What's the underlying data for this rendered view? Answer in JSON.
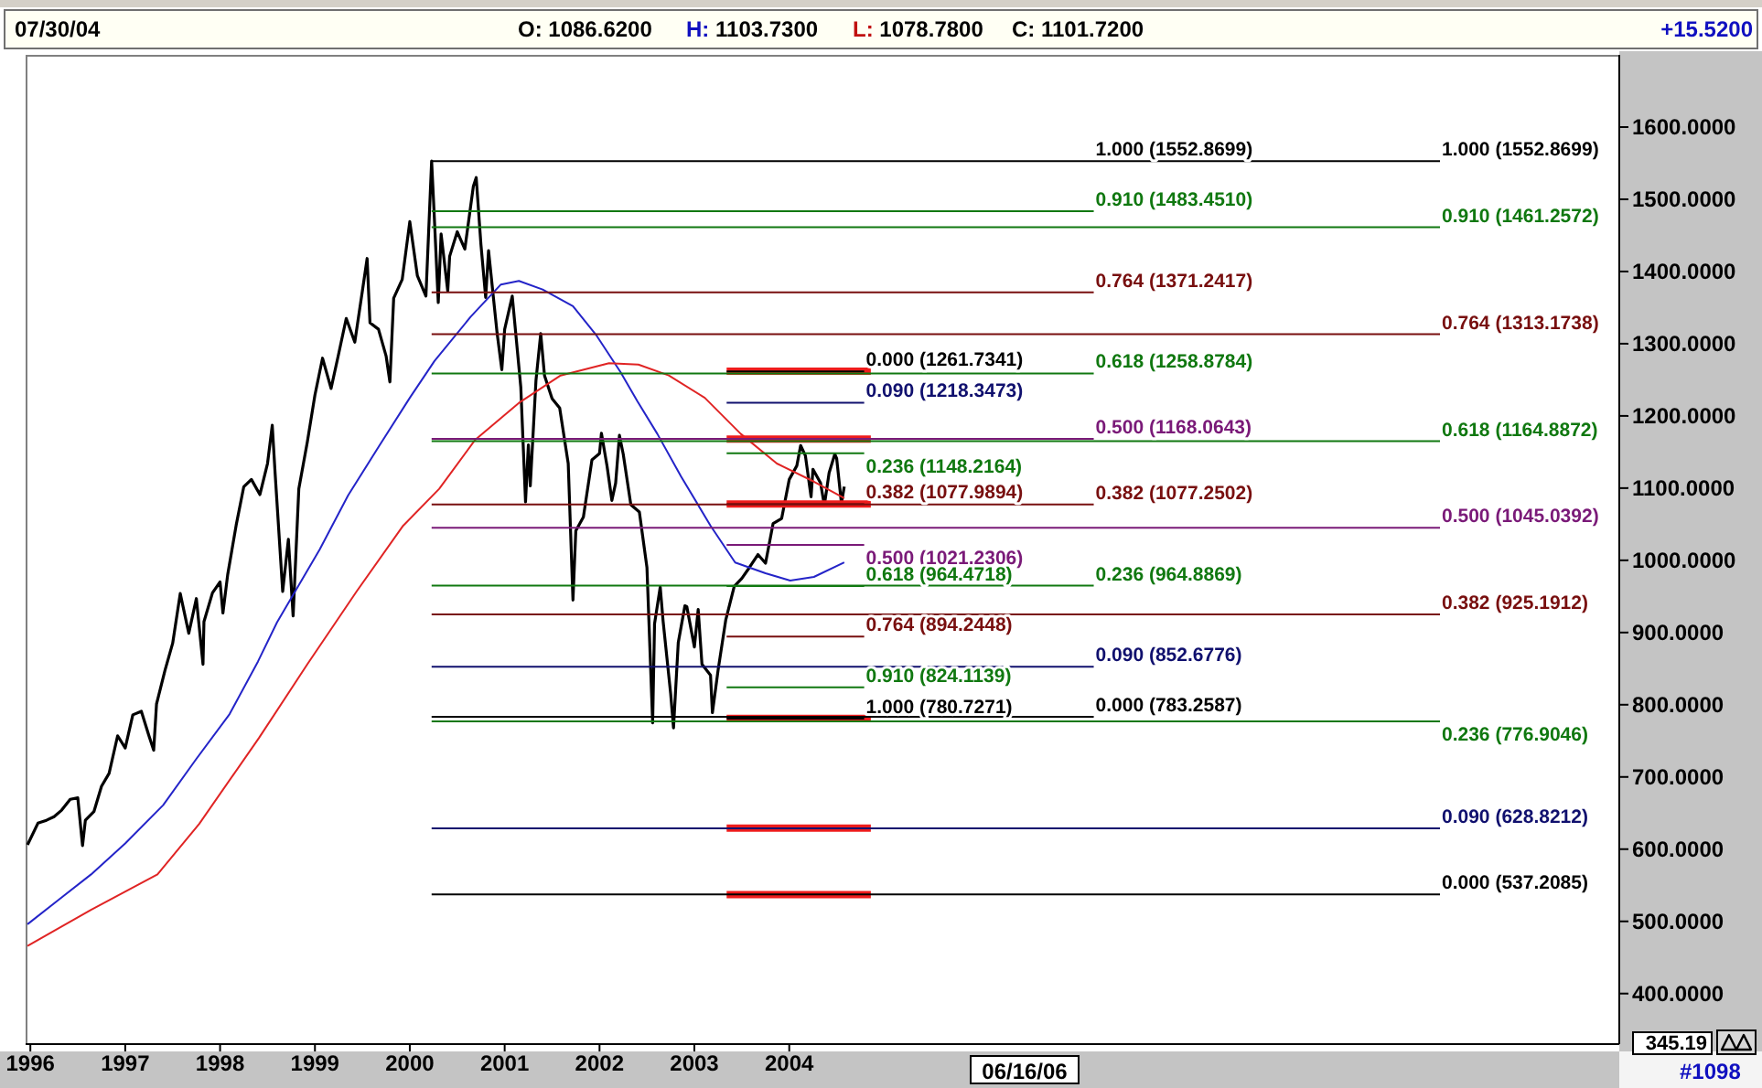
{
  "chart_data": {
    "type": "line",
    "annotations": [
      "07/30/04",
      "O: 1086.6200",
      "H: 1103.7300",
      "L: 1078.7800",
      "C: 1101.7200",
      "+15.5200",
      "06/16/06",
      "#1098",
      "345.19",
      {
        "text": "1.000 (1552.8699)",
        "x": 2007.21,
        "y": 1552.8699
      }
    ],
    "xlim": [
      1995.95,
      2012.75
    ],
    "xticks": [
      1996,
      1997,
      1998,
      1999,
      2000,
      2001,
      2002,
      2003,
      2004
    ],
    "ylim": [
      330,
      1700
    ],
    "yticks": [
      {
        "value": 400,
        "label": "400.0000"
      },
      {
        "value": 500,
        "label": "500.0000"
      },
      {
        "value": 600,
        "label": "600.0000"
      },
      {
        "value": 700,
        "label": "700.0000"
      },
      {
        "value": 800,
        "label": "800.0000"
      },
      {
        "value": 900,
        "label": "900.0000"
      },
      {
        "value": 1000,
        "label": "1000.0000"
      },
      {
        "value": 1100,
        "label": "1100.0000"
      },
      {
        "value": 1200,
        "label": "1200.0000"
      },
      {
        "value": 1300,
        "label": "1300.0000"
      },
      {
        "value": 1400,
        "label": "1400.0000"
      },
      {
        "value": 1500,
        "label": "1500.0000"
      },
      {
        "value": 1600,
        "label": "1600.0000"
      }
    ],
    "marker": "none",
    "line_style": "solid",
    "series": [
      {
        "color": "#000000",
        "x": [
          1995.97,
          1996.08,
          1996.17,
          1996.25,
          1996.33,
          1996.42,
          1996.5,
          1996.55,
          1996.58,
          1996.67,
          1996.75,
          1996.83,
          1996.92,
          1997,
          1997.08,
          1997.17,
          1997.25,
          1997.3,
          1997.33,
          1997.42,
          1997.5,
          1997.58,
          1997.67,
          1997.75,
          1997.82,
          1997.83,
          1997.92,
          1998,
          1998.03,
          1998.08,
          1998.17,
          1998.25,
          1998.33,
          1998.42,
          1998.5,
          1998.55,
          1998.58,
          1998.66,
          1998.72,
          1998.77,
          1998.83,
          1998.92,
          1999,
          1999.08,
          1999.17,
          1999.25,
          1999.33,
          1999.42,
          1999.5,
          1999.55,
          1999.58,
          1999.67,
          1999.75,
          1999.79,
          1999.83,
          1999.92,
          2000,
          2000.08,
          2000.17,
          2000.23,
          2000.25,
          2000.3,
          2000.33,
          2000.4,
          2000.42,
          2000.5,
          2000.58,
          2000.67,
          2000.7,
          2000.75,
          2000.8,
          2000.83,
          2000.92,
          2000.97,
          2001,
          2001.08,
          2001.17,
          2001.22,
          2001.25,
          2001.27,
          2001.33,
          2001.38,
          2001.42,
          2001.5,
          2001.58,
          2001.67,
          2001.72,
          2001.75,
          2001.83,
          2001.92,
          2002,
          2002.02,
          2002.08,
          2002.13,
          2002.17,
          2002.21,
          2002.25,
          2002.33,
          2002.42,
          2002.5,
          2002.56,
          2002.58,
          2002.64,
          2002.67,
          2002.75,
          2002.78,
          2002.83,
          2002.9,
          2002.92,
          2003,
          2003.04,
          2003.08,
          2003.17,
          2003.19,
          2003.25,
          2003.33,
          2003.42,
          2003.5,
          2003.58,
          2003.67,
          2003.75,
          2003.83,
          2003.92,
          2004,
          2004.08,
          2004.12,
          2004.17,
          2004.23,
          2004.25,
          2004.33,
          2004.37,
          2004.42,
          2004.48,
          2004.5,
          2004.55,
          2004.58
        ],
        "values": [
          606,
          636,
          640,
          645,
          654,
          669,
          671,
          605,
          640,
          652,
          687,
          705,
          757,
          740,
          786,
          791,
          757,
          737,
          801,
          848,
          885,
          954,
          899,
          947,
          856,
          915,
          955,
          970,
          927,
          980,
          1049,
          1102,
          1112,
          1091,
          1134,
          1187,
          1121,
          957,
          1029,
          923,
          1099,
          1164,
          1229,
          1280,
          1238,
          1286,
          1335,
          1302,
          1373,
          1418,
          1329,
          1320,
          1283,
          1247,
          1363,
          1389,
          1469,
          1394,
          1366,
          1553,
          1499,
          1357,
          1452,
          1373,
          1421,
          1455,
          1431,
          1518,
          1530,
          1437,
          1364,
          1429,
          1315,
          1264,
          1320,
          1366,
          1240,
          1081,
          1160,
          1103,
          1249,
          1314,
          1256,
          1224,
          1211,
          1134,
          945,
          1041,
          1060,
          1139,
          1148,
          1176,
          1130,
          1083,
          1107,
          1173,
          1147,
          1077,
          1067,
          990,
          775,
          912,
          963,
          916,
          815,
          768,
          886,
          937,
          936,
          880,
          932,
          856,
          841,
          789,
          848,
          917,
          964,
          975,
          990,
          1008,
          996,
          1051,
          1058,
          1112,
          1131,
          1159,
          1145,
          1088,
          1126,
          1107,
          1076,
          1121,
          1147,
          1141,
          1079,
          1102
        ]
      },
      {
        "color": "#2424c8",
        "x": [
          1995.97,
          1996.3,
          1996.64,
          1997,
          1997.4,
          1997.75,
          1998.1,
          1998.4,
          1998.6,
          1999.05,
          1999.35,
          1999.68,
          2000,
          2000.26,
          2000.64,
          2000.96,
          2001.15,
          2001.4,
          2001.72,
          2001.97,
          2002.22,
          2002.4,
          2002.61,
          2002.86,
          2003.17,
          2003.43,
          2003.75,
          2004.01,
          2004.26,
          2004.58
        ],
        "values": [
          496,
          530,
          565,
          608,
          661,
          725,
          787,
          860,
          914,
          1015,
          1090,
          1159,
          1225,
          1276,
          1337,
          1382,
          1387,
          1375,
          1352,
          1311,
          1261,
          1220,
          1175,
          1116,
          1048,
          997,
          982,
          972,
          977,
          997
        ]
      },
      {
        "color": "#e02424",
        "x": [
          1995.97,
          1996.64,
          1997.34,
          1997.78,
          1998.41,
          1998.92,
          1999.44,
          1999.93,
          2000.31,
          2000.69,
          2001.15,
          2001.59,
          2002.1,
          2002.41,
          2002.73,
          2003.11,
          2003.49,
          2003.87,
          2004.26,
          2004.58
        ],
        "values": [
          466,
          516,
          565,
          635,
          754,
          856,
          957,
          1048,
          1099,
          1167,
          1218,
          1256,
          1273,
          1271,
          1256,
          1225,
          1175,
          1134,
          1109,
          1086
        ]
      },
      {
        "color": "#ee1c1c",
        "x": [
          2003.34,
          2004.86
        ],
        "values": [
          1262,
          1262
        ]
      },
      {
        "color": "#ee1c1c",
        "x": [
          2003.34,
          2004.86
        ],
        "values": [
          1168,
          1168
        ]
      },
      {
        "color": "#ee1c1c",
        "x": [
          2003.34,
          2004.86
        ],
        "values": [
          1078,
          1078
        ]
      },
      {
        "color": "#ee1c1c",
        "x": [
          2003.34,
          2004.86
        ],
        "values": [
          781,
          781
        ]
      },
      {
        "color": "#ee1c1c",
        "x": [
          2003.34,
          2004.86
        ],
        "values": [
          629,
          629
        ]
      },
      {
        "color": "#ee1c1c",
        "x": [
          2003.34,
          2004.86
        ],
        "values": [
          537,
          537
        ]
      },
      {
        "name": "0.000 (1261.7341)",
        "color": "#000000",
        "x": [
          2003.34,
          2004.79
        ],
        "values": [
          1261.7341,
          1261.7341
        ]
      },
      {
        "name": "0.090 (1218.3473)",
        "color": "#10106e",
        "x": [
          2003.34,
          2004.79
        ],
        "values": [
          1218.3473,
          1218.3473
        ]
      },
      {
        "name": "0.236 (1148.2164)",
        "color": "#107810",
        "x": [
          2003.34,
          2004.79
        ],
        "values": [
          1148.2164,
          1148.2164
        ]
      },
      {
        "name": "0.382 (1077.9894)",
        "color": "#780f0f",
        "x": [
          2003.34,
          2004.79
        ],
        "values": [
          1077.9894,
          1077.9894
        ]
      },
      {
        "name": "0.500 (1021.2306)",
        "color": "#7a1a78",
        "x": [
          2003.34,
          2004.79
        ],
        "values": [
          1021.2306,
          1021.2306
        ]
      },
      {
        "name": "0.618 (964.4718)",
        "color": "#107810",
        "x": [
          2003.34,
          2004.79
        ],
        "values": [
          964.4718,
          964.4718
        ]
      },
      {
        "name": "0.764 (894.2448)",
        "color": "#780f0f",
        "x": [
          2003.34,
          2004.79
        ],
        "values": [
          894.2448,
          894.2448
        ]
      },
      {
        "name": "0.910 (824.1139)",
        "color": "#107810",
        "x": [
          2003.34,
          2004.79
        ],
        "values": [
          824.1139,
          824.1139
        ]
      },
      {
        "name": "1.000 (780.7271)",
        "color": "#000000",
        "x": [
          2003.34,
          2004.79
        ],
        "values": [
          780.7271,
          780.7271
        ]
      },
      {
        "name": "0.910 (1483.4510)",
        "color": "#107810",
        "x": [
          2000.23,
          2007.21
        ],
        "values": [
          1483.451,
          1483.451
        ]
      },
      {
        "name": "0.764 (1371.2417)",
        "color": "#780f0f",
        "x": [
          2000.23,
          2007.21
        ],
        "values": [
          1371.2417,
          1371.2417
        ]
      },
      {
        "name": "0.618 (1258.8784)",
        "color": "#107810",
        "x": [
          2000.23,
          2007.21
        ],
        "values": [
          1258.8784,
          1258.8784
        ]
      },
      {
        "name": "0.500 (1168.0643)",
        "color": "#7a1a78",
        "x": [
          2000.23,
          2007.21
        ],
        "values": [
          1168.0643,
          1168.0643
        ]
      },
      {
        "name": "0.382 (1077.2502)",
        "color": "#780f0f",
        "x": [
          2000.23,
          2007.21
        ],
        "values": [
          1077.2502,
          1077.2502
        ]
      },
      {
        "name": "0.236 (964.8869)",
        "color": "#107810",
        "x": [
          2000.23,
          2007.21
        ],
        "values": [
          964.8869,
          964.8869
        ]
      },
      {
        "name": "0.090 (852.6776)",
        "color": "#10106e",
        "x": [
          2000.23,
          2007.21
        ],
        "values": [
          852.6776,
          852.6776
        ]
      },
      {
        "name": "0.000 (783.2587)",
        "color": "#000000",
        "x": [
          2000.23,
          2007.21
        ],
        "values": [
          783.2587,
          783.2587
        ]
      },
      {
        "name": "1.000 (1552.8699)",
        "color": "#000000",
        "x": [
          2000.23,
          2010.86
        ],
        "values": [
          1552.8699,
          1552.8699
        ]
      },
      {
        "name": "0.910 (1461.2572)",
        "color": "#107810",
        "x": [
          2000.23,
          2010.86
        ],
        "values": [
          1461.2572,
          1461.2572
        ]
      },
      {
        "name": "0.764 (1313.1738)",
        "color": "#780f0f",
        "x": [
          2000.23,
          2010.86
        ],
        "values": [
          1313.1738,
          1313.1738
        ]
      },
      {
        "name": "0.618 (1164.8872)",
        "color": "#107810",
        "x": [
          2000.23,
          2010.86
        ],
        "values": [
          1164.8872,
          1164.8872
        ]
      },
      {
        "name": "0.500 (1045.0392)",
        "color": "#7a1a78",
        "x": [
          2000.23,
          2010.86
        ],
        "values": [
          1045.0392,
          1045.0392
        ]
      },
      {
        "name": "0.382 (925.1912)",
        "color": "#780f0f",
        "x": [
          2000.23,
          2010.86
        ],
        "values": [
          925.1912,
          925.1912
        ]
      },
      {
        "name": "0.236 (776.9046)",
        "color": "#107810",
        "x": [
          2000.23,
          2010.86
        ],
        "values": [
          776.9046,
          776.9046
        ]
      },
      {
        "name": "0.090 (628.8212)",
        "color": "#10106e",
        "x": [
          2000.23,
          2010.86
        ],
        "values": [
          628.8212,
          628.8212
        ]
      },
      {
        "name": "0.000 (537.2085)",
        "color": "#000000",
        "x": [
          2000.23,
          2010.86
        ],
        "values": [
          537.2085,
          537.2085
        ]
      }
    ]
  }
}
